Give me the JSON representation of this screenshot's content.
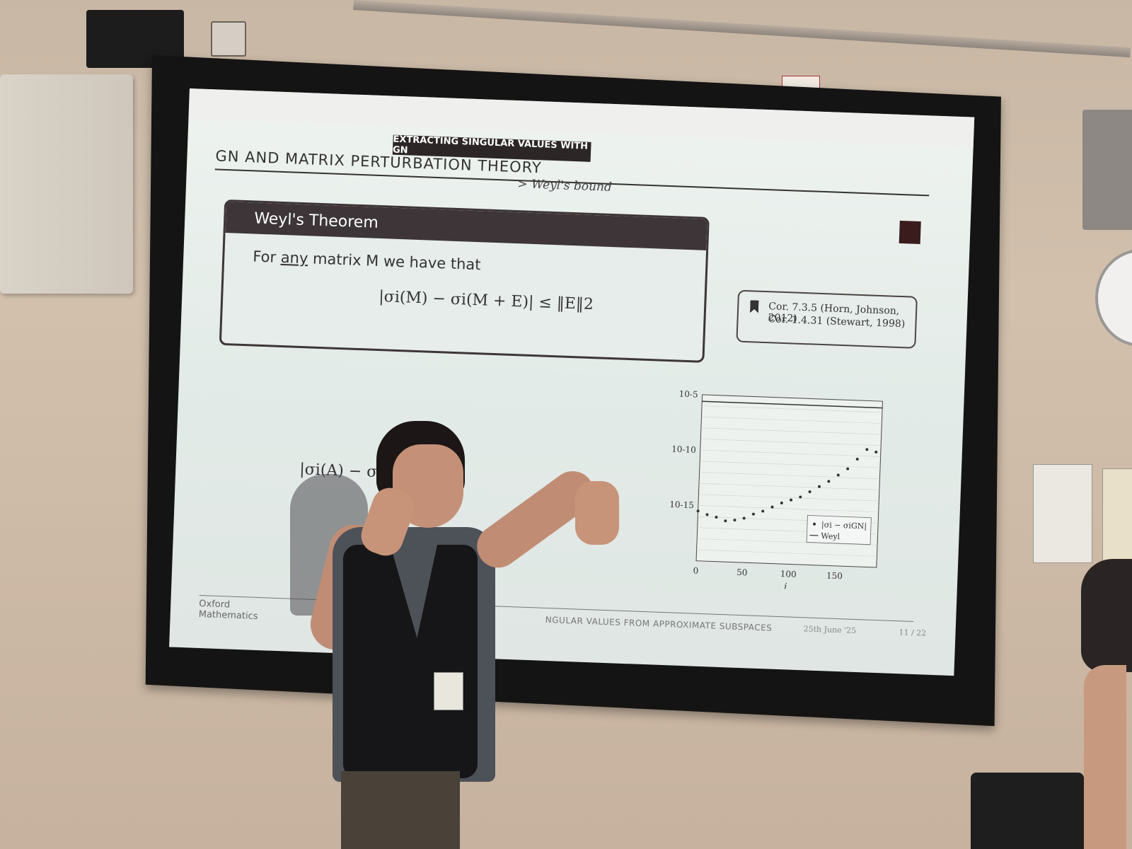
{
  "slide": {
    "section_tab": "EXTRACTING SINGULAR VALUES WITH GN",
    "title": "GN AND MATRIX PERTURBATION THEORY",
    "subtitle": "> Weyl's bound",
    "theorem": {
      "heading": "Weyl's Theorem",
      "body_prefix": "For ",
      "body_underlined": "any",
      "body_suffix": " matrix M we have that",
      "equation": "|σi(M) − σi(M + E)| ≤ ‖E‖2"
    },
    "references": {
      "line1": "Cor. 7.3.5 (Horn, Johnson, 2012)",
      "line2": "Cor. 1.4.31 (Stewart, 1998)"
    },
    "gn_equation": "|σi(A) − σi                           ‖EGN‖2",
    "footer": {
      "org_line1": "Oxford",
      "org_line2": "Mathematics",
      "talk": "NGULAR VALUES FROM APPROXIMATE SUBSPACES",
      "date": "25th June '25",
      "page": "11 / 22"
    }
  },
  "chart_data": {
    "type": "scatter",
    "xlabel": "i",
    "ylabel": "",
    "x_ticks": [
      "0",
      "50",
      "100",
      "150"
    ],
    "y_ticks": [
      "10-5",
      "10-10",
      "10-15"
    ],
    "xlim": [
      0,
      195
    ],
    "ylim_log10": [
      -20,
      -5
    ],
    "log_y": true,
    "legend": [
      "|σi − σiGN|",
      "Weyl"
    ],
    "legend_position": "bottom-right",
    "series": [
      {
        "name": "|σi − σiGN|",
        "x": [
          0,
          10,
          20,
          30,
          40,
          50,
          60,
          70,
          80,
          90,
          100,
          110,
          120,
          130,
          140,
          150,
          160,
          170,
          180,
          190
        ],
        "y_log10": [
          -15.5,
          -15.8,
          -16.0,
          -16.3,
          -16.2,
          -16.0,
          -15.6,
          -15.3,
          -14.9,
          -14.5,
          -14.2,
          -13.9,
          -13.4,
          -12.9,
          -12.4,
          -11.8,
          -11.2,
          -10.3,
          -9.4,
          -9.6
        ]
      },
      {
        "name": "Weyl",
        "x": [
          0,
          195
        ],
        "y_log10": [
          -5.6,
          -5.6
        ]
      }
    ]
  }
}
